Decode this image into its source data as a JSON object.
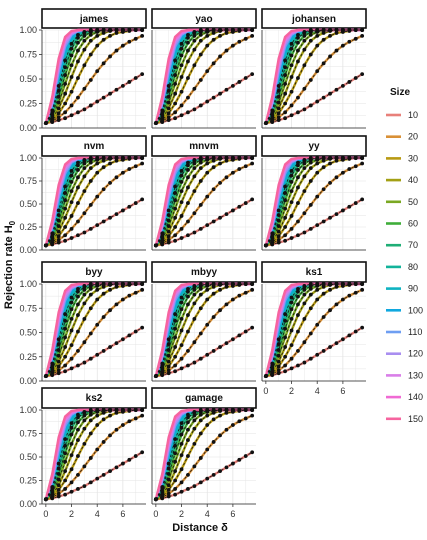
{
  "chart_data": {
    "type": "line",
    "facet_labels": [
      "james",
      "yao",
      "johansen",
      "nvm",
      "mnvm",
      "yy",
      "byy",
      "mbyy",
      "ks1",
      "ks2",
      "gamage"
    ],
    "xlabel": "Distance δ",
    "ylabel": "Rejection rate H",
    "ylabel_subscript": "0",
    "x_ticks": [
      "0",
      "2",
      "4",
      "6"
    ],
    "y_ticks": [
      "0.00",
      "0.25",
      "0.50",
      "0.75",
      "1.00"
    ],
    "xlim": [
      -0.3,
      7.8
    ],
    "ylim": [
      0,
      1
    ],
    "grid": true,
    "legend_position": "right",
    "legend_title": "Size",
    "x": [
      0,
      0.5,
      1,
      1.5,
      2,
      2.5,
      3,
      3.5,
      4,
      4.5,
      5,
      5.5,
      6,
      6.5,
      7,
      7.5
    ],
    "series": [
      {
        "name": "10",
        "color": "#e8807a",
        "values": [
          0.05,
          0.06,
          0.08,
          0.1,
          0.13,
          0.16,
          0.19,
          0.23,
          0.27,
          0.31,
          0.35,
          0.39,
          0.43,
          0.47,
          0.51,
          0.55
        ]
      },
      {
        "name": "20",
        "color": "#d99036",
        "values": [
          0.05,
          0.07,
          0.11,
          0.16,
          0.23,
          0.31,
          0.4,
          0.49,
          0.58,
          0.66,
          0.73,
          0.79,
          0.84,
          0.88,
          0.91,
          0.94
        ]
      },
      {
        "name": "30",
        "color": "#b89a12",
        "values": [
          0.05,
          0.08,
          0.15,
          0.25,
          0.37,
          0.51,
          0.64,
          0.75,
          0.84,
          0.9,
          0.94,
          0.97,
          0.98,
          0.99,
          1.0,
          1.0
        ]
      },
      {
        "name": "40",
        "color": "#a3a014",
        "values": [
          0.05,
          0.1,
          0.2,
          0.35,
          0.52,
          0.68,
          0.8,
          0.89,
          0.94,
          0.97,
          0.99,
          1.0,
          1.0,
          1.0,
          1.0,
          1.0
        ]
      },
      {
        "name": "50",
        "color": "#7aa822",
        "values": [
          0.05,
          0.12,
          0.26,
          0.45,
          0.64,
          0.79,
          0.89,
          0.95,
          0.98,
          0.99,
          1.0,
          1.0,
          1.0,
          1.0,
          1.0,
          1.0
        ]
      },
      {
        "name": "60",
        "color": "#3fad3a",
        "values": [
          0.05,
          0.14,
          0.32,
          0.54,
          0.74,
          0.87,
          0.94,
          0.98,
          0.99,
          1.0,
          1.0,
          1.0,
          1.0,
          1.0,
          1.0,
          1.0
        ]
      },
      {
        "name": "70",
        "color": "#1fae76",
        "values": [
          0.05,
          0.16,
          0.38,
          0.62,
          0.81,
          0.92,
          0.97,
          0.99,
          1.0,
          1.0,
          1.0,
          1.0,
          1.0,
          1.0,
          1.0,
          1.0
        ]
      },
      {
        "name": "80",
        "color": "#12b39a",
        "values": [
          0.05,
          0.18,
          0.43,
          0.69,
          0.86,
          0.95,
          0.98,
          1.0,
          1.0,
          1.0,
          1.0,
          1.0,
          1.0,
          1.0,
          1.0,
          1.0
        ]
      },
      {
        "name": "90",
        "color": "#0eb3c1",
        "values": [
          0.05,
          0.2,
          0.48,
          0.74,
          0.9,
          0.97,
          0.99,
          1.0,
          1.0,
          1.0,
          1.0,
          1.0,
          1.0,
          1.0,
          1.0,
          1.0
        ]
      },
      {
        "name": "100",
        "color": "#10a8df",
        "values": [
          0.05,
          0.22,
          0.53,
          0.79,
          0.93,
          0.98,
          1.0,
          1.0,
          1.0,
          1.0,
          1.0,
          1.0,
          1.0,
          1.0,
          1.0,
          1.0
        ]
      },
      {
        "name": "110",
        "color": "#6e9ef2",
        "values": [
          0.05,
          0.24,
          0.57,
          0.83,
          0.95,
          0.99,
          1.0,
          1.0,
          1.0,
          1.0,
          1.0,
          1.0,
          1.0,
          1.0,
          1.0,
          1.0
        ]
      },
      {
        "name": "120",
        "color": "#a98ef0",
        "values": [
          0.05,
          0.26,
          0.61,
          0.86,
          0.96,
          0.99,
          1.0,
          1.0,
          1.0,
          1.0,
          1.0,
          1.0,
          1.0,
          1.0,
          1.0,
          1.0
        ]
      },
      {
        "name": "130",
        "color": "#d97ee8",
        "values": [
          0.05,
          0.28,
          0.65,
          0.89,
          0.97,
          1.0,
          1.0,
          1.0,
          1.0,
          1.0,
          1.0,
          1.0,
          1.0,
          1.0,
          1.0,
          1.0
        ]
      },
      {
        "name": "140",
        "color": "#f06ad4",
        "values": [
          0.05,
          0.3,
          0.68,
          0.91,
          0.98,
          1.0,
          1.0,
          1.0,
          1.0,
          1.0,
          1.0,
          1.0,
          1.0,
          1.0,
          1.0,
          1.0
        ]
      },
      {
        "name": "150",
        "color": "#f6649f",
        "values": [
          0.05,
          0.32,
          0.71,
          0.93,
          0.99,
          1.0,
          1.0,
          1.0,
          1.0,
          1.0,
          1.0,
          1.0,
          1.0,
          1.0,
          1.0,
          1.0
        ]
      }
    ],
    "point_series": [
      "10",
      "20",
      "30",
      "40",
      "50",
      "60",
      "70",
      "80"
    ]
  }
}
